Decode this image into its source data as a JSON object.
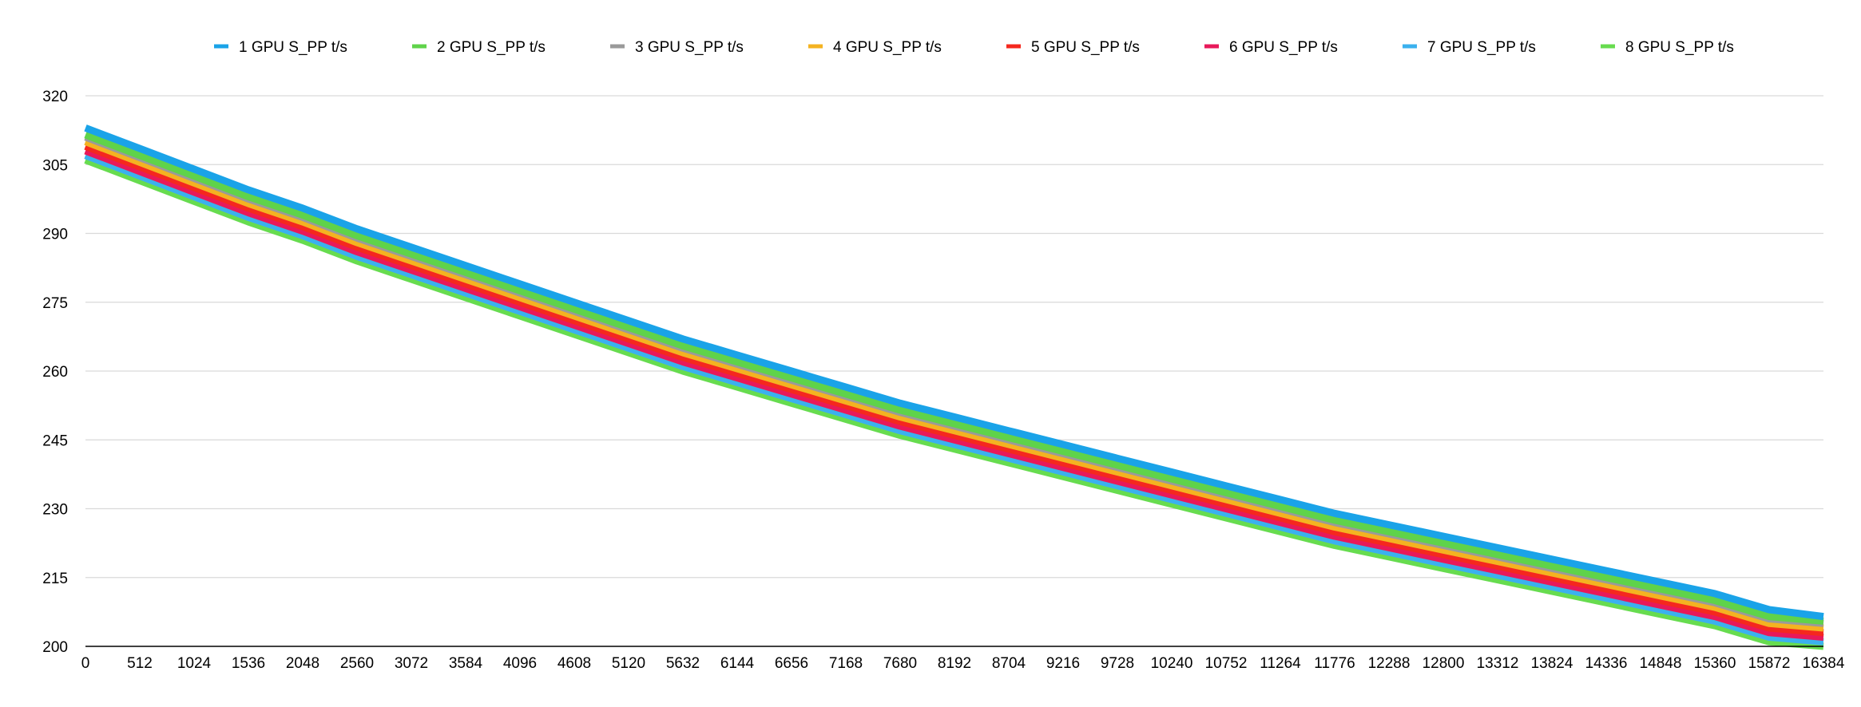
{
  "chart_data": {
    "type": "line",
    "title": "",
    "xlabel": "",
    "ylabel": "",
    "ylim": [
      200,
      320
    ],
    "yticks": [
      200,
      215,
      230,
      245,
      260,
      275,
      290,
      305,
      320
    ],
    "grid": true,
    "legend_position": "top",
    "x": [
      0,
      512,
      1024,
      1536,
      2048,
      2560,
      3072,
      3584,
      4096,
      4608,
      5120,
      5632,
      6144,
      6656,
      7168,
      7680,
      8192,
      8704,
      9216,
      9728,
      10240,
      10752,
      11264,
      11776,
      12288,
      12800,
      13312,
      13824,
      14336,
      14848,
      15360,
      15872,
      16384
    ],
    "series": [
      {
        "name": "1 GPU S_PP t/s",
        "color": "#1aa3e8",
        "values": [
          313,
          308.5,
          304,
          299.5,
          295.5,
          291,
          287,
          283,
          279,
          275,
          271,
          267,
          263.5,
          260,
          256.5,
          253,
          250,
          247,
          244,
          241,
          238,
          235,
          232,
          229,
          226.5,
          224,
          221.5,
          219,
          216.5,
          214,
          211.5,
          208,
          206.5
        ]
      },
      {
        "name": "2 GPU S_PP t/s",
        "color": "#5fd34a",
        "values": [
          311.5,
          307,
          302.5,
          298,
          294,
          289.5,
          285.5,
          281.5,
          277.5,
          273.5,
          269.5,
          265.5,
          262,
          258.5,
          255,
          251.5,
          248.5,
          245.5,
          242.5,
          239.5,
          236.5,
          233.5,
          230.5,
          227.5,
          225,
          222.5,
          220,
          217.5,
          215,
          212.5,
          210,
          206.5,
          205.5
        ]
      },
      {
        "name": "3 GPU S_PP t/s",
        "color": "#9a9a9a",
        "values": [
          311,
          306.5,
          302,
          297.5,
          293.5,
          289,
          285,
          281,
          277,
          273,
          269,
          265,
          261.5,
          258,
          254.5,
          251,
          248,
          245,
          242,
          239,
          236,
          233,
          230,
          227,
          224.5,
          222,
          219.5,
          217,
          214.5,
          212,
          209.5,
          206,
          205
        ]
      },
      {
        "name": "4 GPU S_PP t/s",
        "color": "#f4b321",
        "values": [
          310,
          305.5,
          301,
          296.5,
          292.5,
          288,
          284,
          280,
          276,
          272,
          268,
          264,
          260.5,
          257,
          253.5,
          250,
          247,
          244,
          241,
          238,
          235,
          232,
          229,
          226,
          223.5,
          221,
          218.5,
          216,
          213.5,
          211,
          208.5,
          205,
          204
        ]
      },
      {
        "name": "5 GPU S_PP t/s",
        "color": "#f5281e",
        "values": [
          309,
          304.5,
          300,
          295.5,
          291.5,
          287,
          283,
          279,
          275,
          271,
          267,
          263,
          259.5,
          256,
          252.5,
          249,
          246,
          243,
          240,
          237,
          234,
          231,
          228,
          225,
          222.5,
          220,
          217.5,
          215,
          212.5,
          210,
          207.5,
          204,
          203
        ]
      },
      {
        "name": "6 GPU S_PP t/s",
        "color": "#e8195a",
        "values": [
          308,
          303.5,
          299,
          294.5,
          290.5,
          286,
          282,
          278,
          274,
          270,
          266,
          262,
          258.5,
          255,
          251.5,
          248,
          245,
          242,
          239,
          236,
          233,
          230,
          227,
          224,
          221.5,
          219,
          216.5,
          214,
          211.5,
          209,
          206.5,
          203,
          202
        ]
      },
      {
        "name": "7 GPU S_PP t/s",
        "color": "#3bb1ee",
        "values": [
          307,
          302.5,
          298,
          293.5,
          289.5,
          285,
          281,
          277,
          273,
          269,
          265,
          261,
          257.5,
          254,
          250.5,
          247,
          244,
          241,
          238,
          235,
          232,
          229,
          226,
          223,
          220.5,
          218,
          215.5,
          213,
          210.5,
          208,
          205.5,
          202,
          201
        ]
      },
      {
        "name": "8 GPU S_PP t/s",
        "color": "#67dc4f",
        "values": [
          306,
          301.5,
          297,
          292.5,
          288.5,
          284,
          280,
          276,
          272,
          268,
          264,
          260,
          256.5,
          253,
          249.5,
          246,
          243,
          240,
          237,
          234,
          231,
          228,
          225,
          222,
          219.5,
          217,
          214.5,
          212,
          209.5,
          207,
          204.5,
          201,
          200
        ]
      }
    ]
  }
}
